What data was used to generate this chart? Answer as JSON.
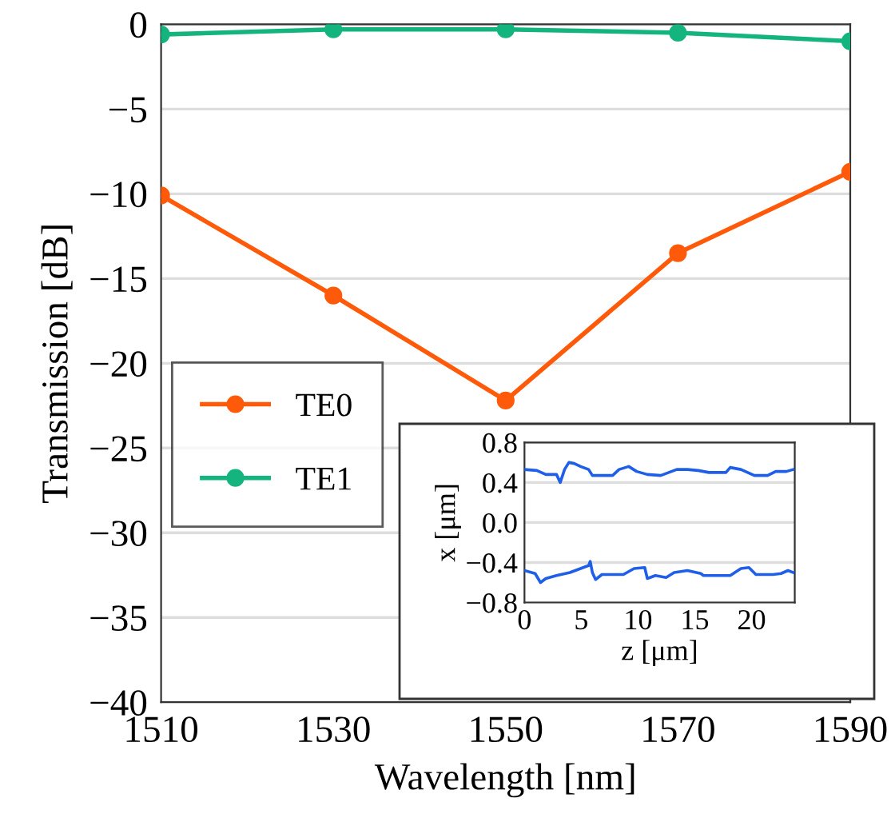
{
  "chart_data": [
    {
      "type": "line",
      "xlabel": "Wavelength [nm]",
      "ylabel": "Transmission [dB]",
      "x": [
        1510,
        1530,
        1550,
        1570,
        1590
      ],
      "series": [
        {
          "name": "TE0",
          "color": "#ff5a0a",
          "values": [
            -10.1,
            -16.0,
            -22.2,
            -13.5,
            -8.7
          ]
        },
        {
          "name": "TE1",
          "color": "#14b47e",
          "values": [
            -0.6,
            -0.3,
            -0.3,
            -0.5,
            -1.0
          ]
        }
      ],
      "xlim": [
        1510,
        1590
      ],
      "xticks": [
        1510,
        1530,
        1550,
        1570,
        1590
      ],
      "ylim": [
        -40,
        0
      ],
      "yticks": [
        0,
        -5,
        -10,
        -15,
        -20,
        -25,
        -30,
        -35,
        -40
      ],
      "grid": "y",
      "legend": "center left",
      "marker": "circle",
      "line_style": "solid"
    },
    {
      "type": "line",
      "xlabel": "z [μm]",
      "ylabel": "x [μm]",
      "series": [
        {
          "color": "#1f5fe8",
          "x": [
            0,
            1.08,
            1.88,
            2.82,
            3.15,
            3.53,
            3.91,
            4.38,
            4.94,
            5.65,
            5.98,
            7.76,
            8.33,
            9.18,
            9.88,
            10.82,
            12.0,
            12.94,
            13.41,
            14.35,
            15.29,
            16.24,
            17.74,
            18.12,
            19.06,
            20.24,
            21.41,
            22.12,
            23.06,
            23.67
          ],
          "values": [
            0.53,
            0.52,
            0.48,
            0.48,
            0.4,
            0.53,
            0.6,
            0.59,
            0.56,
            0.53,
            0.47,
            0.47,
            0.53,
            0.56,
            0.51,
            0.48,
            0.47,
            0.51,
            0.53,
            0.53,
            0.52,
            0.5,
            0.5,
            0.55,
            0.53,
            0.47,
            0.47,
            0.51,
            0.51,
            0.53
          ]
        },
        {
          "color": "#1f5fe8",
          "x": [
            0,
            0.94,
            1.41,
            1.88,
            2.82,
            4.0,
            4.94,
            5.65,
            5.79,
            5.98,
            6.26,
            6.82,
            8.71,
            9.65,
            10.59,
            10.82,
            11.53,
            12.47,
            13.18,
            14.35,
            15.53,
            15.76,
            18.12,
            19.06,
            19.76,
            20.38,
            21.88,
            22.59,
            23.2,
            23.67
          ],
          "values": [
            -0.48,
            -0.51,
            -0.6,
            -0.56,
            -0.53,
            -0.5,
            -0.46,
            -0.43,
            -0.39,
            -0.5,
            -0.57,
            -0.52,
            -0.52,
            -0.46,
            -0.45,
            -0.56,
            -0.53,
            -0.55,
            -0.5,
            -0.48,
            -0.51,
            -0.53,
            -0.53,
            -0.46,
            -0.45,
            -0.52,
            -0.52,
            -0.51,
            -0.48,
            -0.5
          ]
        }
      ],
      "xlim": [
        0,
        23.8
      ],
      "xticks": [
        0,
        5,
        10,
        15,
        20
      ],
      "ylim": [
        -0.8,
        0.8
      ],
      "yticks": [
        0.8,
        0.4,
        {
          "value": 0,
          "label": "0.0"
        },
        -0.4,
        -0.8
      ],
      "grid": "y",
      "line_style": "solid"
    }
  ]
}
